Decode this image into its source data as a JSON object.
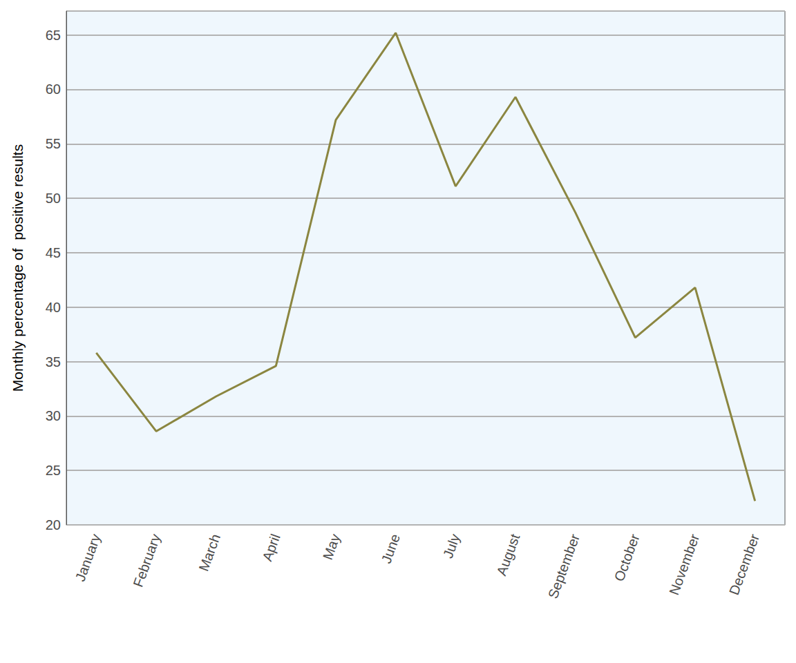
{
  "chart_data": {
    "type": "line",
    "y_label": "Monthly percentage of  positive results",
    "categories": [
      "January",
      "February",
      "March",
      "April",
      "May",
      "June",
      "July",
      "August",
      "September",
      "October",
      "November",
      "December"
    ],
    "values": [
      35.8,
      28.6,
      31.8,
      34.6,
      57.2,
      65.2,
      51.1,
      59.3,
      48.7,
      37.2,
      41.8,
      22.2
    ],
    "color": "#8b8640",
    "ylim": [
      20,
      67.2
    ],
    "yticks": [
      20,
      25,
      30,
      35,
      40,
      45,
      50,
      55,
      60,
      65
    ],
    "grid": true
  }
}
